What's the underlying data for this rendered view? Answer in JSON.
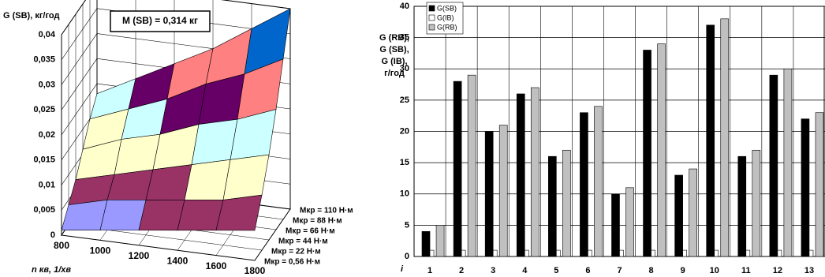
{
  "chart_data": [
    {
      "type": "surface",
      "annotation": "M (SB) = 0,314 кг",
      "zlabel": "G (SB), кг/год",
      "xlabel": "n кв, 1/хв",
      "x": [
        800,
        1000,
        1200,
        1400,
        1600,
        1800
      ],
      "xlim": [
        800,
        1800
      ],
      "xticks": [
        800,
        1000,
        1200,
        1400,
        1600,
        1800
      ],
      "zlim": [
        0,
        0.04
      ],
      "zticks": [
        0,
        {
          "value": 0.005,
          "label": "0,005"
        },
        {
          "value": 0.01,
          "label": "0,01"
        },
        {
          "value": 0.015,
          "label": "0,015"
        },
        {
          "value": 0.02,
          "label": "0,02"
        },
        {
          "value": 0.025,
          "label": "0,025"
        },
        {
          "value": 0.03,
          "label": "0,03"
        },
        {
          "value": 0.035,
          "label": "0,035"
        },
        {
          "value": 0.04,
          "label": "0,04"
        }
      ],
      "band_colors": [
        "#9999ff",
        "#993366",
        "#ffffcc",
        "#ccffff",
        "#660066",
        "#ff8080",
        "#0066cc",
        "#ccccff"
      ],
      "series": [
        {
          "name": "Мкр = 0,56 Н·м",
          "values": [
            0.001,
            0.002,
            0.003,
            0.004,
            0.005,
            0.006
          ]
        },
        {
          "name": "Мкр = 22 Н·м",
          "values": [
            0.004,
            0.006,
            0.007,
            0.008,
            0.009,
            0.011
          ]
        },
        {
          "name": "Мкр = 44 Н·м",
          "values": [
            0.007,
            0.009,
            0.011,
            0.013,
            0.015,
            0.017
          ]
        },
        {
          "name": "Мкр = 66 Н·м",
          "values": [
            0.011,
            0.014,
            0.016,
            0.019,
            0.021,
            0.024
          ]
        },
        {
          "name": "Мкр = 88 Н·м",
          "values": [
            0.015,
            0.018,
            0.021,
            0.025,
            0.028,
            0.032
          ]
        },
        {
          "name": "Мкр = 110 Н·м",
          "values": [
            0.018,
            0.022,
            0.026,
            0.03,
            0.035,
            0.04
          ]
        }
      ]
    },
    {
      "type": "bar",
      "ylabel": [
        "G (RB),",
        "G (SB),",
        "G (IB),",
        "г/год"
      ],
      "xlabel": "i",
      "categories": [
        "1",
        "2",
        "3",
        "4",
        "5",
        "6",
        "7",
        "8",
        "9",
        "10",
        "11",
        "12",
        "13"
      ],
      "series": [
        {
          "name": "G(SB)",
          "color": "#000000",
          "values": [
            4,
            28,
            20,
            26,
            16,
            23,
            10,
            33,
            13,
            37,
            16,
            29,
            22
          ]
        },
        {
          "name": "G(IB)",
          "color": "#ffffff",
          "values": [
            1,
            1,
            1,
            1,
            1,
            1,
            1,
            1,
            1,
            1,
            1,
            1,
            1
          ]
        },
        {
          "name": "G(RB)",
          "color": "#c0c0c0",
          "values": [
            5,
            29,
            21,
            27,
            17,
            24,
            11,
            34,
            14,
            38,
            17,
            30,
            23
          ]
        }
      ],
      "ylim": [
        0,
        40
      ],
      "yticks": [
        0,
        5,
        10,
        15,
        20,
        25,
        30,
        35,
        40
      ],
      "grid": true,
      "legend": "top-left"
    }
  ]
}
